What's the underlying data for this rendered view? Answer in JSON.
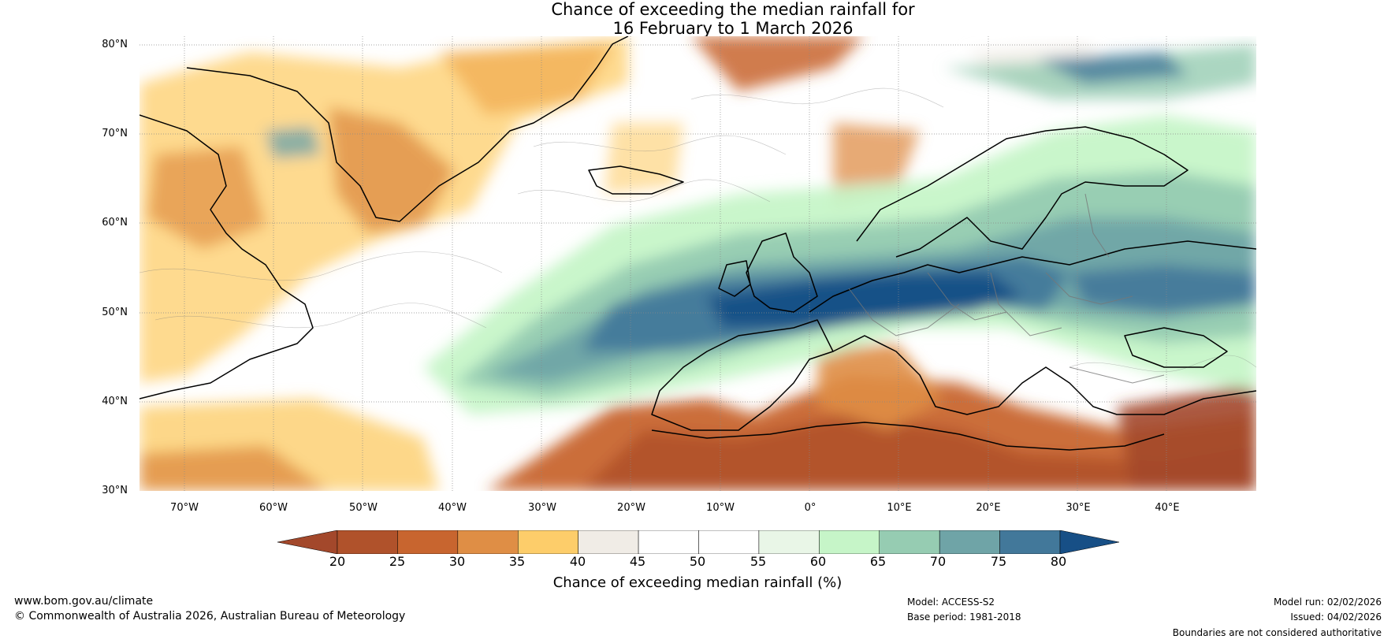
{
  "title": {
    "line1": "Chance of exceeding the median rainfall for",
    "line2": "16 February to 1 March 2026"
  },
  "map": {
    "lat_labels": [
      "80°N",
      "70°N",
      "60°N",
      "50°N",
      "40°N",
      "30°N"
    ],
    "lon_labels": [
      "70°W",
      "60°W",
      "50°W",
      "40°W",
      "30°W",
      "20°W",
      "10°W",
      "0°",
      "10°E",
      "20°E",
      "30°E",
      "40°E"
    ],
    "lat_values": [
      80,
      70,
      60,
      50,
      40,
      30
    ],
    "lon_values": [
      -70,
      -60,
      -50,
      -40,
      -30,
      -20,
      -10,
      0,
      10,
      20,
      30,
      40
    ],
    "extent": {
      "lon_min": -75,
      "lon_max": 50,
      "lat_min": 30,
      "lat_max": 81
    }
  },
  "colorbar": {
    "ticks": [
      "20",
      "25",
      "30",
      "35",
      "40",
      "45",
      "50",
      "55",
      "60",
      "65",
      "70",
      "75",
      "80"
    ],
    "bin_colors": [
      "#b0522b",
      "#c8652f",
      "#df8e45",
      "#fdcd6a",
      "#f0ece6",
      "#ffffff",
      "#ffffff",
      "#e9f6e7",
      "#c6f5c8",
      "#96ccb2",
      "#6fa4a7",
      "#42789a"
    ],
    "under_color": "#a3482b",
    "over_color": "#174f86",
    "label": "Chance of exceeding median rainfall (%)"
  },
  "footer": {
    "website": "www.bom.gov.au/climate",
    "copyright": "© Commonwealth of Australia 2026, Australian Bureau of Meteorology",
    "model": "Model: ACCESS-S2",
    "base_period": "Base period: 1981-2018",
    "model_run": "Model run: 02/02/2026",
    "issued": "Issued: 04/02/2026",
    "disclaimer": "Boundaries are not considered authoritative"
  }
}
